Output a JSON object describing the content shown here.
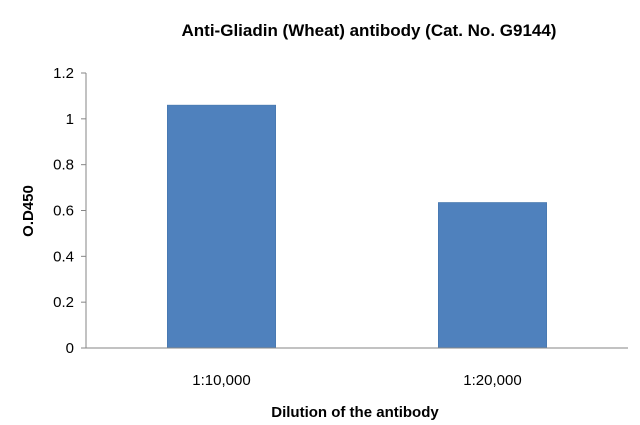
{
  "chart_data": {
    "type": "bar",
    "title": "Anti-Gliadin (Wheat) antibody  (Cat. No. G9144)",
    "xlabel": "Dilution of the antibody",
    "ylabel": "O.D450",
    "categories": [
      "1:10,000",
      "1:20,000"
    ],
    "values": [
      1.06,
      0.635
    ],
    "ylim": [
      0,
      1.2
    ],
    "yticks": [
      "0",
      "0.2",
      "0.4",
      "0.6",
      "0.8",
      "1",
      "1.2"
    ],
    "grid": false,
    "legend": "none",
    "bar_color": "#4f81bd",
    "axis_color": "#868686"
  }
}
